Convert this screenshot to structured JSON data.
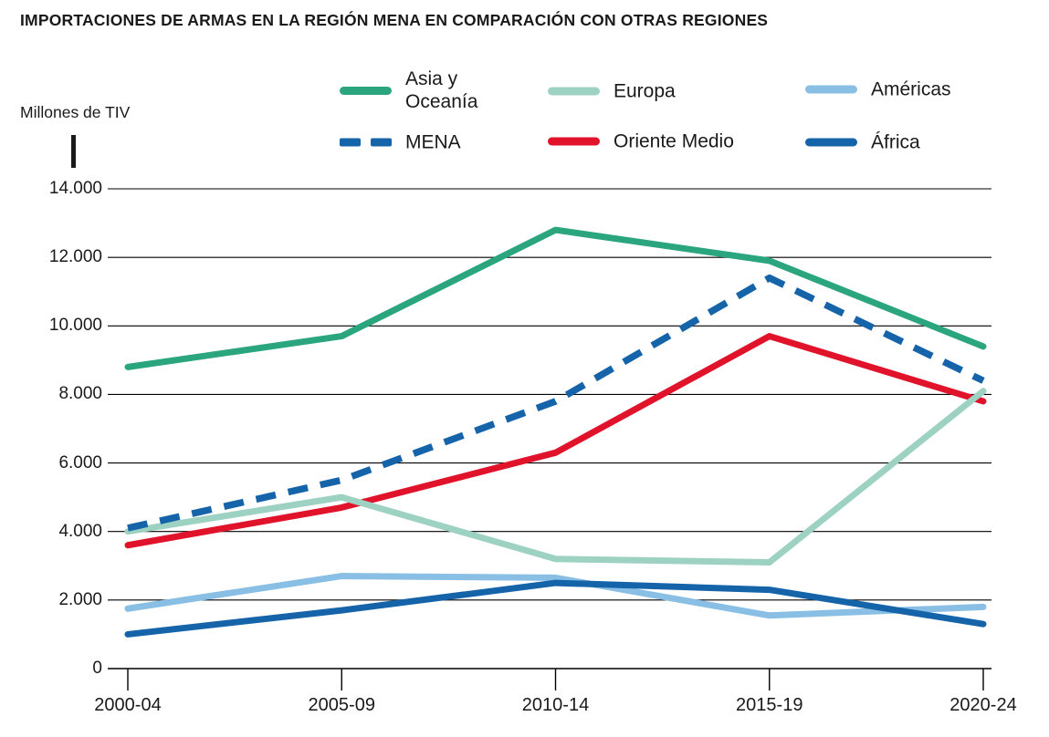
{
  "title": "IMPORTACIONES DE ARMAS EN LA REGIÓN MENA EN COMPARACIÓN CON OTRAS REGIONES",
  "y_axis_title": "Millones de TIV",
  "legend": {
    "entries": [
      {
        "label": "Asia y\nOceanía",
        "color": "#2BA57E",
        "dashed": false
      },
      {
        "label": "Europa",
        "color": "#9DD2C3",
        "dashed": false
      },
      {
        "label": "Américas",
        "color": "#89BFE4",
        "dashed": false
      },
      {
        "label": "MENA",
        "color": "#1563A9",
        "dashed": true
      },
      {
        "label": "Oriente Medio",
        "color": "#E0132B",
        "dashed": false
      },
      {
        "label": "África",
        "color": "#1563A9",
        "dashed": false
      }
    ]
  },
  "chart_data": {
    "type": "line",
    "title": "IMPORTACIONES DE ARMAS EN LA REGIÓN MENA EN COMPARACIÓN CON OTRAS REGIONES",
    "ylabel": "Millones de TIV",
    "xlabel": "",
    "categories": [
      "2000-04",
      "2005-09",
      "2010-14",
      "2015-19",
      "2020-24"
    ],
    "series": [
      {
        "name": "Asia y Oceanía",
        "color": "#2BA57E",
        "dashed": false,
        "values": [
          8800,
          9700,
          12800,
          11900,
          9400
        ]
      },
      {
        "name": "MENA",
        "color": "#1563A9",
        "dashed": true,
        "values": [
          4100,
          5500,
          7800,
          11400,
          8400
        ]
      },
      {
        "name": "Europa",
        "color": "#9DD2C3",
        "dashed": false,
        "values": [
          4000,
          5000,
          3200,
          3100,
          8100
        ]
      },
      {
        "name": "Oriente Medio",
        "color": "#E0132B",
        "dashed": false,
        "values": [
          3600,
          4700,
          6300,
          9700,
          7800
        ]
      },
      {
        "name": "Américas",
        "color": "#89BFE4",
        "dashed": false,
        "values": [
          1750,
          2700,
          2650,
          1550,
          1800
        ]
      },
      {
        "name": "África",
        "color": "#1563A9",
        "dashed": false,
        "values": [
          1000,
          1700,
          2500,
          2300,
          1300
        ]
      }
    ],
    "y_ticks": [
      {
        "value": 14000,
        "label": "14.000"
      },
      {
        "value": 12000,
        "label": "12.000"
      },
      {
        "value": 10000,
        "label": "10.000"
      },
      {
        "value": 8000,
        "label": "8.000"
      },
      {
        "value": 6000,
        "label": "6.000"
      },
      {
        "value": 4000,
        "label": "4.000"
      },
      {
        "value": 2000,
        "label": "2.000"
      },
      {
        "value": 0,
        "label": "0"
      }
    ],
    "ylim": [
      0,
      14000
    ],
    "grid": true,
    "legend_position": "top",
    "axis_color": "#000000",
    "text_color": "#1a1a1a"
  }
}
